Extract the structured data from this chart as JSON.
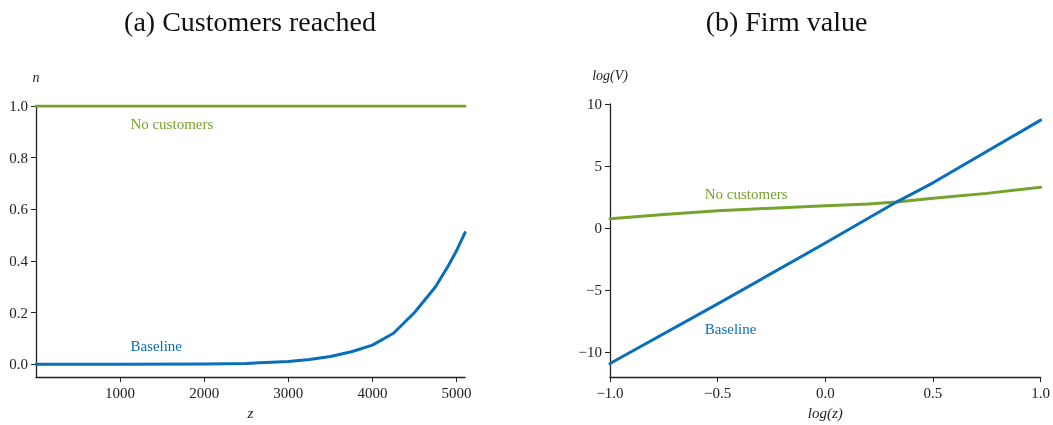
{
  "chart_data": [
    {
      "type": "line",
      "title": "(a) Customers reached",
      "xlabel": "z",
      "ylabel": "n",
      "xlim": [
        0,
        5100
      ],
      "ylim": [
        -0.05,
        1.0
      ],
      "xticks": [
        1000,
        2000,
        3000,
        4000,
        5000
      ],
      "yticks": [
        {
          "value": 0,
          "label": "0.0"
        },
        {
          "value": 0.2,
          "label": "0.2"
        },
        {
          "value": 0.4,
          "label": "0.4"
        },
        {
          "value": 0.6,
          "label": "0.6"
        },
        {
          "value": 0.8,
          "label": "0.8"
        },
        {
          "value": 1,
          "label": "1.0"
        }
      ],
      "grid": false,
      "line_style": "solid",
      "series": [
        {
          "name": "No customers",
          "color": "#76a32e",
          "x": [
            0,
            5100
          ],
          "values": [
            1,
            1
          ]
        },
        {
          "name": "Baseline",
          "color": "#0a6fba",
          "x": [
            0,
            1000,
            2000,
            2500,
            3000,
            3250,
            3500,
            3750,
            4000,
            4250,
            4500,
            4750,
            4900,
            5000,
            5100
          ],
          "values": [
            0,
            0,
            0.001,
            0.003,
            0.01,
            0.018,
            0.03,
            0.048,
            0.074,
            0.12,
            0.2,
            0.3,
            0.38,
            0.44,
            0.51
          ]
        }
      ]
    },
    {
      "type": "line",
      "title": "(b) Firm value",
      "xlabel": "log(z)",
      "ylabel": "log(V)",
      "xlim": [
        -1,
        1
      ],
      "ylim": [
        -12,
        10
      ],
      "xticks": [
        {
          "value": -1,
          "label": "−1.0"
        },
        {
          "value": -0.5,
          "label": "−0.5"
        },
        {
          "value": 0,
          "label": "0.0"
        },
        {
          "value": 0.5,
          "label": "0.5"
        },
        {
          "value": 1,
          "label": "1.0"
        }
      ],
      "yticks": [
        {
          "value": -10,
          "label": "−10"
        },
        {
          "value": -5,
          "label": "−5"
        },
        0,
        5,
        10
      ],
      "grid": false,
      "line_style": "solid",
      "series": [
        {
          "name": "No customers",
          "color": "#76a32e",
          "x": [
            -1,
            -0.75,
            -0.5,
            -0.25,
            0,
            0.2,
            0.33,
            0.5,
            0.75,
            1
          ],
          "values": [
            0.75,
            1.1,
            1.4,
            1.6,
            1.8,
            1.95,
            2.1,
            2.4,
            2.8,
            3.3
          ]
        },
        {
          "name": "Baseline",
          "color": "#0a6fba",
          "x": [
            -1,
            -0.5,
            0,
            0.33,
            0.5,
            1
          ],
          "values": [
            -10.9,
            -6.1,
            -1.2,
            2.1,
            3.65,
            8.7
          ]
        }
      ]
    }
  ]
}
